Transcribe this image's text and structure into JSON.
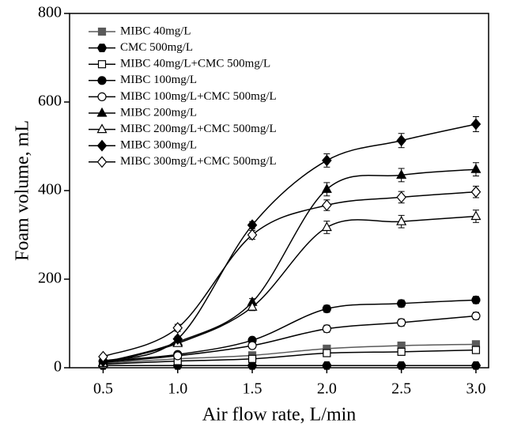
{
  "chart_data": {
    "type": "line",
    "x_label": "Air flow rate, L/min",
    "y_label": "Foam volume, mL",
    "x": [
      0.5,
      1.0,
      1.5,
      2.0,
      2.5,
      3.0
    ],
    "xlim": [
      0.275,
      3.085
    ],
    "xticks": [
      0.5,
      {
        "value": 1.0,
        "label": "1.0"
      },
      1.5,
      {
        "value": 2.0,
        "label": "2.0"
      },
      2.5,
      {
        "value": 3.0,
        "label": "3.0"
      }
    ],
    "ylim": [
      0,
      800
    ],
    "yticks": [
      0,
      200,
      400,
      600,
      800
    ],
    "legend": "upper left",
    "series": [
      {
        "name": "MIBC 40mg/L",
        "color": "#5a5a5a",
        "marker": "square",
        "filled": true,
        "values": [
          10,
          20,
          28,
          43,
          50,
          53
        ],
        "errors": [
          3,
          3,
          3,
          4,
          4,
          4
        ]
      },
      {
        "name": "CMC 500mg/L",
        "color": "#000000",
        "marker": "hexagon",
        "filled": true,
        "values": [
          5,
          5,
          5,
          5,
          5,
          5
        ],
        "errors": [
          2,
          2,
          2,
          2,
          2,
          2
        ]
      },
      {
        "name": "MIBC 40mg/L+CMC 500mg/L",
        "color": "#000000",
        "marker": "square",
        "filled": false,
        "values": [
          8,
          15,
          20,
          33,
          36,
          40
        ],
        "errors": [
          3,
          3,
          3,
          4,
          4,
          4
        ]
      },
      {
        "name": "MIBC 100mg/L",
        "color": "#000000",
        "marker": "circle",
        "filled": true,
        "values": [
          15,
          30,
          62,
          133,
          145,
          153
        ],
        "errors": [
          3,
          4,
          5,
          8,
          8,
          8
        ]
      },
      {
        "name": "MIBC 100mg/L+CMC 500mg/L",
        "color": "#000000",
        "marker": "circle",
        "filled": false,
        "values": [
          12,
          27,
          50,
          88,
          102,
          117
        ],
        "errors": [
          3,
          4,
          6,
          8,
          8,
          8
        ]
      },
      {
        "name": "MIBC 200mg/L",
        "color": "#000000",
        "marker": "triangle",
        "filled": true,
        "values": [
          12,
          58,
          148,
          403,
          435,
          448
        ],
        "errors": [
          3,
          6,
          8,
          15,
          15,
          15
        ]
      },
      {
        "name": "MIBC 200mg/L+CMC 500mg/L",
        "color": "#000000",
        "marker": "triangle",
        "filled": false,
        "values": [
          10,
          55,
          137,
          317,
          330,
          342
        ],
        "errors": [
          3,
          6,
          8,
          14,
          14,
          14
        ]
      },
      {
        "name": "MIBC 300mg/L",
        "color": "#000000",
        "marker": "diamond",
        "filled": true,
        "values": [
          15,
          65,
          322,
          468,
          513,
          550
        ],
        "errors": [
          3,
          6,
          8,
          15,
          16,
          17
        ]
      },
      {
        "name": "MIBC 300mg/L+CMC 500mg/L",
        "color": "#000000",
        "marker": "diamond",
        "filled": false,
        "values": [
          25,
          90,
          300,
          367,
          385,
          397
        ],
        "errors": [
          4,
          8,
          10,
          12,
          13,
          13
        ]
      }
    ]
  }
}
